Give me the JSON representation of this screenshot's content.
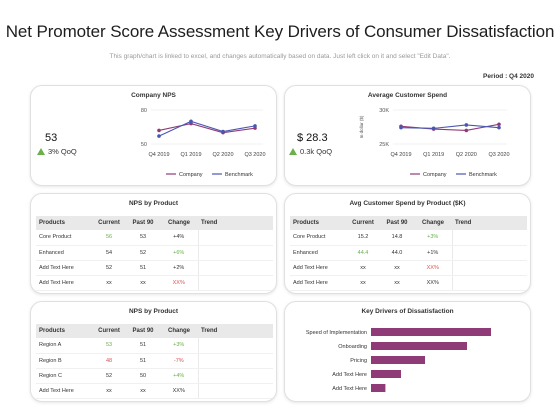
{
  "header": {
    "title": "Net Promoter Score Assessment Key Drivers of Consumer Dissatisfaction",
    "subtitle": "This graph/chart is linked to excel, and changes automatically based on data. Just left click on it and select \"Edit Data\".",
    "period": "Period : Q4 2020"
  },
  "colors": {
    "company": "#8e3b78",
    "benchmark": "#4a57b0",
    "positive": "#6ab04c",
    "negative": "#d9534f",
    "bar": "#8e3b78"
  },
  "company_nps": {
    "title": "Company NPS",
    "value": "53",
    "change": "3% QoQ",
    "legend_company": "Company",
    "legend_benchmark": "Benchmark"
  },
  "avg_spend": {
    "title": "Average Customer Spend",
    "value": "$ 28.3",
    "change": "0.3k QoQ",
    "legend_company": "Company",
    "legend_benchmark": "Benchmark"
  },
  "nps_product": {
    "title": "NPS by Product",
    "headers": [
      "Products",
      "Current",
      "Past 90",
      "Change",
      "Trend"
    ],
    "rows": [
      {
        "product": "Core Product",
        "current": "56",
        "past": "53",
        "change": "+4%",
        "current_class": "green",
        "change_class": ""
      },
      {
        "product": "Enhanced",
        "current": "54",
        "past": "52",
        "change": "+6%",
        "current_class": "",
        "change_class": "green"
      },
      {
        "product": "Add Text Here",
        "current": "52",
        "past": "51",
        "change": "+2%",
        "current_class": "",
        "change_class": ""
      },
      {
        "product": "Add Text Here",
        "current": "xx",
        "past": "xx",
        "change": "XX%",
        "current_class": "",
        "change_class": "red"
      }
    ]
  },
  "spend_product": {
    "title": "Avg Customer Spend by Product ($K)",
    "headers": [
      "Products",
      "Current",
      "Past 90",
      "Change",
      "Trend"
    ],
    "rows": [
      {
        "product": "Core Product",
        "current": "15.2",
        "past": "14.8",
        "change": "+3%",
        "current_class": "",
        "change_class": "green"
      },
      {
        "product": "Enhanced",
        "current": "44.4",
        "past": "44.0",
        "change": "+1%",
        "current_class": "green",
        "change_class": ""
      },
      {
        "product": "Add Text Here",
        "current": "xx",
        "past": "xx",
        "change": "XX%",
        "current_class": "",
        "change_class": "red"
      },
      {
        "product": "Add Text Here",
        "current": "xx",
        "past": "xx",
        "change": "XX%",
        "current_class": "",
        "change_class": ""
      }
    ]
  },
  "nps_region": {
    "title": "NPS by Product",
    "headers": [
      "Products",
      "Current",
      "Past 90",
      "Change",
      "Trend"
    ],
    "rows": [
      {
        "product": "Region A",
        "current": "53",
        "past": "51",
        "change": "+3%",
        "current_class": "green",
        "change_class": "green"
      },
      {
        "product": "Region B",
        "current": "48",
        "past": "51",
        "change": "-7%",
        "current_class": "red",
        "change_class": "red"
      },
      {
        "product": "Region C",
        "current": "52",
        "past": "50",
        "change": "+4%",
        "current_class": "",
        "change_class": "green"
      },
      {
        "product": "Add Text Here",
        "current": "xx",
        "past": "xx",
        "change": "XX%",
        "current_class": "",
        "change_class": ""
      }
    ]
  },
  "drivers": {
    "title": "Key Drivers of Dissatisfaction"
  },
  "chart_data": [
    {
      "type": "line",
      "title": "Company NPS",
      "categories": [
        "Q4 2019",
        "Q1 2019",
        "Q2 2020",
        "Q3 2020"
      ],
      "ylim": [
        50,
        80
      ],
      "yticks": [
        "80",
        "50"
      ],
      "series": [
        {
          "name": "Company",
          "values": [
            62,
            68,
            60,
            64
          ]
        },
        {
          "name": "Benchmark",
          "values": [
            57,
            70,
            61,
            66
          ]
        }
      ]
    },
    {
      "type": "line",
      "title": "Average Customer Spend",
      "categories": [
        "Q4 2019",
        "Q1 2019",
        "Q2 2020",
        "Q3 2020"
      ],
      "ylim": [
        25,
        30
      ],
      "yticks": [
        "30K",
        "25K"
      ],
      "ylabel": "In dollar ($)",
      "series": [
        {
          "name": "Company",
          "values": [
            27.6,
            27.2,
            27.0,
            27.9
          ]
        },
        {
          "name": "Benchmark",
          "values": [
            27.4,
            27.3,
            27.8,
            27.4
          ]
        }
      ]
    },
    {
      "type": "bar",
      "orientation": "horizontal",
      "title": "Key Drivers of Dissatisfaction",
      "categories": [
        "Speed of Implementation",
        "Onboarding",
        "Pricing",
        "Add Text Here",
        "Add Text Here"
      ],
      "values": [
        100,
        80,
        45,
        25,
        12
      ],
      "xlim": [
        0,
        100
      ]
    }
  ]
}
